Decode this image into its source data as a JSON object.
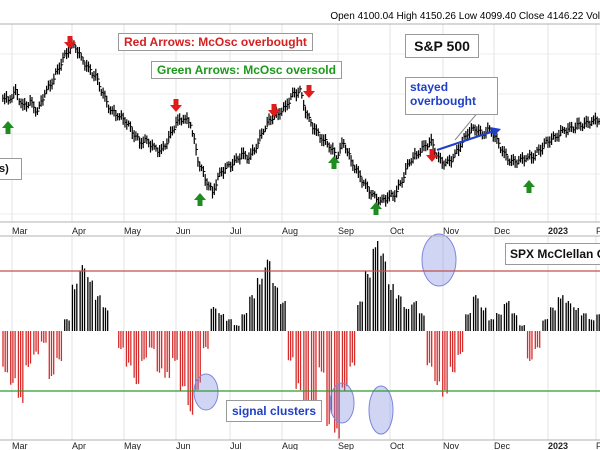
{
  "header": {
    "text": "Open 4100.04  High 4150.26  Low 4099.40  Close 4146.22  Vol"
  },
  "annotations": {
    "red_arrows": "Red Arrows: McOsc overbought",
    "green_arrows": "Green Arrows: McOsc oversold",
    "title": "S&P 500",
    "stayed": "stayed",
    "overbought": "overbought",
    "cut_label": "s)",
    "osc_label": "SPX McClellan O",
    "signal_clusters": "signal clusters"
  },
  "colors": {
    "up": "#000000",
    "down_bar": "#d62b2b",
    "red_arrow": "#e01b1b",
    "green_arrow": "#1e8c1e",
    "red_text": "#d42020",
    "green_text": "#1b9a1b",
    "blue": "#1f3fc8",
    "ob_line": "#c0504d",
    "os_line": "#2f9a2f",
    "ellipse": "#7c86e0"
  },
  "chart_data": [
    {
      "type": "line",
      "title": "S&P 500",
      "x_ticks": [
        "Mar",
        "Apr",
        "May",
        "Jun",
        "Jul",
        "Aug",
        "Sep",
        "Oct",
        "Nov",
        "Dec",
        "2023",
        "Fe"
      ],
      "series": [
        {
          "values": [
            4280,
            4240,
            4300,
            4200,
            4230,
            4170,
            4290,
            4360,
            4460,
            4550,
            4600,
            4510,
            4440,
            4390,
            4280,
            4180,
            4150,
            4120,
            4050,
            3980,
            3990,
            3940,
            3920,
            4000,
            4100,
            4130,
            4100,
            3870,
            3750,
            3660,
            3780,
            3820,
            3850,
            3900,
            3880,
            3950,
            4060,
            4130,
            4160,
            4200,
            4280,
            4300,
            4140,
            4060,
            4000,
            3960,
            3890,
            3980,
            3860,
            3780,
            3700,
            3640,
            3600,
            3630,
            3650,
            3740,
            3860,
            3900,
            3950,
            3980,
            3870,
            3840,
            3880,
            3960,
            4040,
            4070,
            4030,
            4060,
            3990,
            3900,
            3850,
            3860,
            3880,
            3890,
            3940,
            3990,
            4010,
            4050,
            4060,
            4080,
            4090,
            4110,
            4120
          ]
        }
      ],
      "annotations": [
        "Red Arrows: McOsc overbought",
        "Green Arrows: McOsc oversold",
        "stayed overbought"
      ]
    },
    {
      "type": "bar",
      "title": "SPX McClellan O",
      "x_ticks": [
        "Mar",
        "Apr",
        "May",
        "Jun",
        "Jul",
        "Aug",
        "Sep",
        "Oct",
        "Nov",
        "Dec",
        "2023",
        "Fe"
      ],
      "overbought_level": 1,
      "oversold_level": -1,
      "values": [
        -0.7,
        -0.9,
        -1.2,
        -0.6,
        -0.4,
        -0.2,
        -0.8,
        -0.5,
        0.2,
        0.8,
        1.1,
        0.9,
        0.6,
        0.4,
        0.0,
        -0.3,
        -0.6,
        -0.9,
        -0.5,
        -0.3,
        -0.7,
        -0.8,
        -0.5,
        -1.0,
        -1.4,
        -1.0,
        -0.3,
        0.4,
        0.3,
        0.2,
        0.1,
        0.3,
        0.6,
        0.9,
        1.2,
        0.8,
        0.5,
        -0.5,
        -1.0,
        -1.4,
        -1.3,
        -0.7,
        -1.6,
        -1.8,
        -1.0,
        -0.6,
        0.5,
        1.0,
        1.5,
        1.3,
        0.8,
        0.6,
        0.4,
        0.5,
        0.3,
        -0.6,
        -0.9,
        -1.1,
        -0.7,
        -0.4,
        0.3,
        0.6,
        0.4,
        0.2,
        0.3,
        0.5,
        0.3,
        0.1,
        -0.5,
        -0.3,
        0.2,
        0.4,
        0.6,
        0.5,
        0.4,
        0.3,
        0.2,
        0.3
      ]
    }
  ]
}
